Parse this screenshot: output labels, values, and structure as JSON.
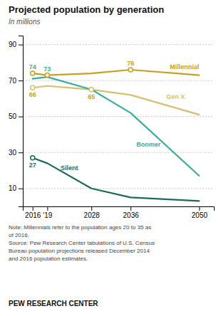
{
  "chart_data": {
    "type": "line",
    "title": "Projected population by generation",
    "subtitle": "In millions",
    "x": [
      2016,
      2019,
      2028,
      2036,
      2050
    ],
    "xlim": [
      2014,
      2053
    ],
    "xticks": [
      2016,
      {
        "value": 2019,
        "label": "'19"
      },
      2028,
      2036,
      2050
    ],
    "ylim": [
      0,
      95
    ],
    "yticks": [
      10,
      30,
      50,
      70,
      90
    ],
    "grid": true,
    "series": [
      {
        "name": "Millennial",
        "color": "#c8a020",
        "values": [
          74,
          73,
          74,
          76,
          73
        ],
        "annotations": [
          {
            "text": "74",
            "x": 2016,
            "y": 74,
            "color": "#3aada0"
          },
          {
            "text": "73",
            "x": 2019,
            "y": 73,
            "color": "#3aada0"
          },
          {
            "text": "76",
            "x": 2036,
            "y": 76,
            "color": "#c8a020"
          }
        ]
      },
      {
        "name": "Gen X",
        "color": "#d4c070",
        "values": [
          66,
          67,
          65,
          62,
          51
        ],
        "annotations": [
          {
            "text": "66",
            "x": 2016,
            "y": 66,
            "color": "#c8a020"
          },
          {
            "text": "65",
            "x": 2028,
            "y": 65,
            "color": "#c8a020"
          }
        ]
      },
      {
        "name": "Boomer",
        "color": "#3aada0",
        "values": [
          71,
          72,
          65,
          52,
          17
        ],
        "annotations": []
      },
      {
        "name": "Silent",
        "color": "#1a6b5a",
        "values": [
          27,
          24,
          10,
          5,
          3
        ],
        "annotations": [
          {
            "text": "27",
            "x": 2016,
            "y": 27,
            "color": "#1a6b5a"
          }
        ]
      }
    ],
    "note": "Note: Millennials refer to the population ages 20 to 35 as\nof 2016.\nSource: Pew Research Center tabulations of U.S. Census\nBureau population projections released December 2014\nand 2016 population estimates.",
    "footer": "PEW RESEARCH CENTER"
  }
}
